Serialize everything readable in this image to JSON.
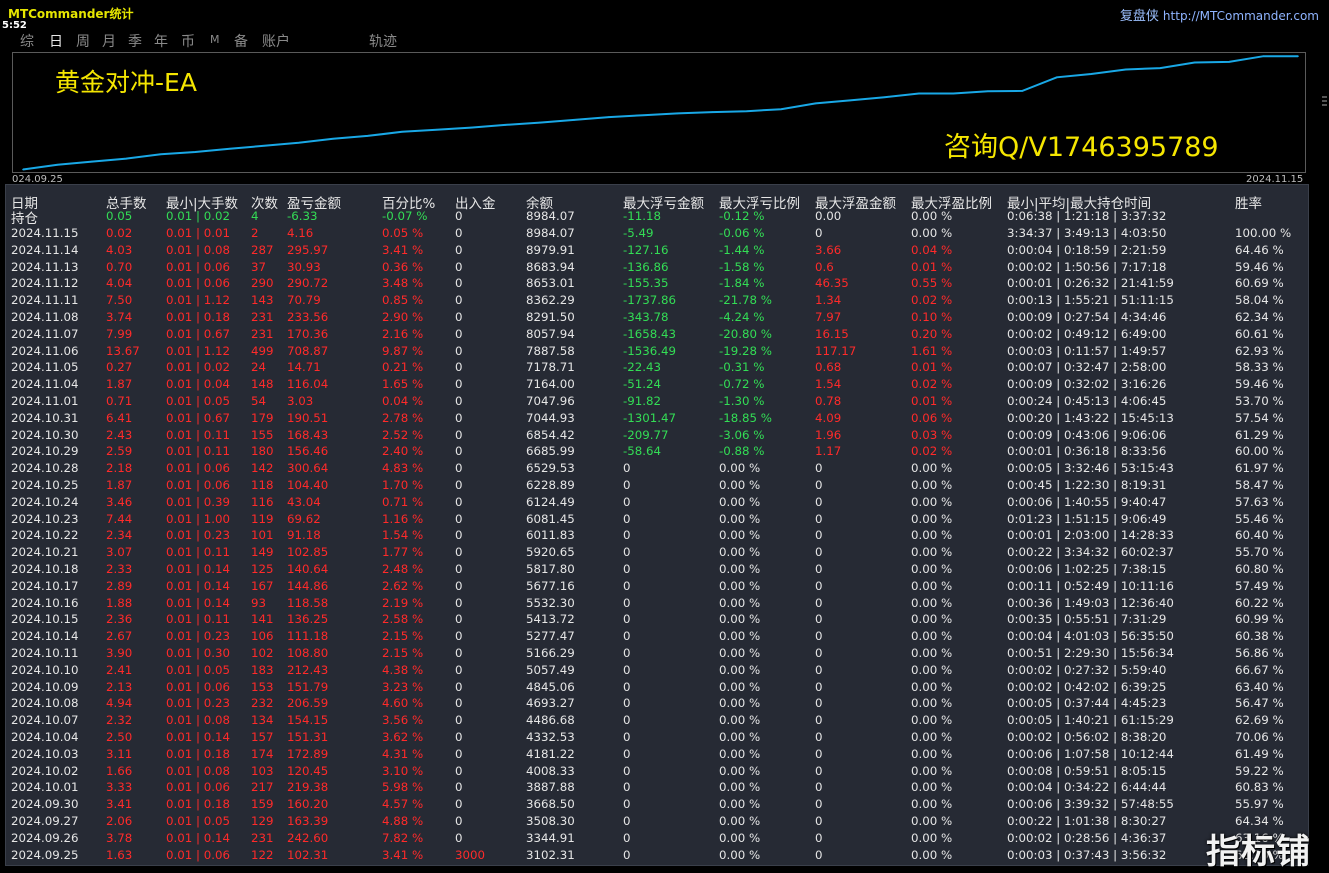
{
  "app": {
    "title": "MTCommander统计",
    "clock": "5:52",
    "brand_cn": "复盘侠",
    "brand_url": "http://MTCommander.com"
  },
  "tabs": [
    {
      "label": "综",
      "active": false
    },
    {
      "label": "日",
      "active": true
    },
    {
      "label": "周",
      "active": false
    },
    {
      "label": "月",
      "active": false
    },
    {
      "label": "季",
      "active": false
    },
    {
      "label": "年",
      "active": false
    },
    {
      "label": "币",
      "active": false
    },
    {
      "label": "M",
      "active": false
    },
    {
      "label": "备",
      "active": false
    },
    {
      "label": "账户",
      "active": false
    },
    {
      "label": "轨迹",
      "active": false
    }
  ],
  "chart": {
    "name": "黄金对冲-EA",
    "contact": "咨询Q/V1746395789",
    "date_start": "024.09.25",
    "date_end": "2024.11.15",
    "line_color": "#19a8e6"
  },
  "chart_data": {
    "type": "line",
    "series": [
      {
        "x": [
          "2024.09.25",
          "2024.09.26",
          "2024.09.27",
          "2024.09.30",
          "2024.10.01",
          "2024.10.02",
          "2024.10.03",
          "2024.10.04",
          "2024.10.07",
          "2024.10.08",
          "2024.10.09",
          "2024.10.10",
          "2024.10.11",
          "2024.10.14",
          "2024.10.15",
          "2024.10.16",
          "2024.10.17",
          "2024.10.18",
          "2024.10.21",
          "2024.10.22",
          "2024.10.23",
          "2024.10.24",
          "2024.10.25",
          "2024.10.28",
          "2024.10.29",
          "2024.10.30",
          "2024.10.31",
          "2024.11.01",
          "2024.11.04",
          "2024.11.05",
          "2024.11.06",
          "2024.11.07",
          "2024.11.08",
          "2024.11.11",
          "2024.11.12",
          "2024.11.13",
          "2024.11.14",
          "2024.11.15"
        ],
        "values": [
          3102.31,
          3344.91,
          3508.3,
          3668.5,
          3887.88,
          4008.33,
          4181.22,
          4332.53,
          4486.68,
          4693.27,
          4845.06,
          5057.49,
          5166.29,
          5277.47,
          5413.72,
          5532.3,
          5677.16,
          5817.8,
          5920.65,
          6011.83,
          6081.45,
          6124.49,
          6228.89,
          6529.53,
          6685.99,
          6854.42,
          7044.93,
          7047.96,
          7164.0,
          7178.71,
          7887.58,
          8057.94,
          8291.5,
          8362.29,
          8653.01,
          8683.94,
          8979.91,
          8984.07
        ]
      }
    ]
  },
  "table": {
    "headers": [
      "日期",
      "总手数",
      "最小|大手数",
      "次数",
      "盈亏金额",
      "百分比%",
      "出入金",
      "余额",
      "最大浮亏金额",
      "最大浮亏比例",
      "最大浮盈金额",
      "最大浮盈比例",
      "最小|平均|最大持仓时间",
      "胜率"
    ],
    "summary": [
      "持仓",
      "0.05",
      "0.01 | 0.02",
      "4",
      "-6.33",
      "-0.07 %",
      "0",
      "8984.07",
      "-11.18",
      "-0.12 %",
      "0.00",
      "0.00 %",
      "0:06:38 | 1:21:18 | 3:37:32",
      ""
    ],
    "rows": [
      [
        "2024.11.15",
        "0.02",
        "0.01 | 0.01",
        "2",
        "4.16",
        "0.05 %",
        "0",
        "8984.07",
        "-5.49",
        "-0.06 %",
        "0",
        "0.00 %",
        "3:34:37 | 3:49:13 | 4:03:50",
        "100.00 %"
      ],
      [
        "2024.11.14",
        "4.03",
        "0.01 | 0.08",
        "287",
        "295.97",
        "3.41 %",
        "0",
        "8979.91",
        "-127.16",
        "-1.44 %",
        "3.66",
        "0.04 %",
        "0:00:04 | 0:18:59 | 2:21:59",
        "64.46 %"
      ],
      [
        "2024.11.13",
        "0.70",
        "0.01 | 0.06",
        "37",
        "30.93",
        "0.36 %",
        "0",
        "8683.94",
        "-136.86",
        "-1.58 %",
        "0.6",
        "0.01 %",
        "0:00:02 | 1:50:56 | 7:17:18",
        "59.46 %"
      ],
      [
        "2024.11.12",
        "4.04",
        "0.01 | 0.06",
        "290",
        "290.72",
        "3.48 %",
        "0",
        "8653.01",
        "-155.35",
        "-1.84 %",
        "46.35",
        "0.55 %",
        "0:00:01 | 0:26:32 | 21:41:59",
        "60.69 %"
      ],
      [
        "2024.11.11",
        "7.50",
        "0.01 | 1.12",
        "143",
        "70.79",
        "0.85 %",
        "0",
        "8362.29",
        "-1737.86",
        "-21.78 %",
        "1.34",
        "0.02 %",
        "0:00:13 | 1:55:21 | 51:11:15",
        "58.04 %"
      ],
      [
        "2024.11.08",
        "3.74",
        "0.01 | 0.18",
        "231",
        "233.56",
        "2.90 %",
        "0",
        "8291.50",
        "-343.78",
        "-4.24 %",
        "7.97",
        "0.10 %",
        "0:00:09 | 0:27:54 | 4:34:46",
        "62.34 %"
      ],
      [
        "2024.11.07",
        "7.99",
        "0.01 | 0.67",
        "231",
        "170.36",
        "2.16 %",
        "0",
        "8057.94",
        "-1658.43",
        "-20.80 %",
        "16.15",
        "0.20 %",
        "0:00:02 | 0:49:12 | 6:49:00",
        "60.61 %"
      ],
      [
        "2024.11.06",
        "13.67",
        "0.01 | 1.12",
        "499",
        "708.87",
        "9.87 %",
        "0",
        "7887.58",
        "-1536.49",
        "-19.28 %",
        "117.17",
        "1.61 %",
        "0:00:03 | 0:11:57 | 1:49:57",
        "62.93 %"
      ],
      [
        "2024.11.05",
        "0.27",
        "0.01 | 0.02",
        "24",
        "14.71",
        "0.21 %",
        "0",
        "7178.71",
        "-22.43",
        "-0.31 %",
        "0.68",
        "0.01 %",
        "0:00:07 | 0:32:47 | 2:58:00",
        "58.33 %"
      ],
      [
        "2024.11.04",
        "1.87",
        "0.01 | 0.04",
        "148",
        "116.04",
        "1.65 %",
        "0",
        "7164.00",
        "-51.24",
        "-0.72 %",
        "1.54",
        "0.02 %",
        "0:00:09 | 0:32:02 | 3:16:26",
        "59.46 %"
      ],
      [
        "2024.11.01",
        "0.71",
        "0.01 | 0.05",
        "54",
        "3.03",
        "0.04 %",
        "0",
        "7047.96",
        "-91.82",
        "-1.30 %",
        "0.78",
        "0.01 %",
        "0:00:24 | 0:45:13 | 4:06:45",
        "53.70 %"
      ],
      [
        "2024.10.31",
        "6.41",
        "0.01 | 0.67",
        "179",
        "190.51",
        "2.78 %",
        "0",
        "7044.93",
        "-1301.47",
        "-18.85 %",
        "4.09",
        "0.06 %",
        "0:00:20 | 1:43:22 | 15:45:13",
        "57.54 %"
      ],
      [
        "2024.10.30",
        "2.43",
        "0.01 | 0.11",
        "155",
        "168.43",
        "2.52 %",
        "0",
        "6854.42",
        "-209.77",
        "-3.06 %",
        "1.96",
        "0.03 %",
        "0:00:09 | 0:43:06 | 9:06:06",
        "61.29 %"
      ],
      [
        "2024.10.29",
        "2.59",
        "0.01 | 0.11",
        "180",
        "156.46",
        "2.40 %",
        "0",
        "6685.99",
        "-58.64",
        "-0.88 %",
        "1.17",
        "0.02 %",
        "0:00:01 | 0:36:18 | 8:33:56",
        "60.00 %"
      ],
      [
        "2024.10.28",
        "2.18",
        "0.01 | 0.06",
        "142",
        "300.64",
        "4.83 %",
        "0",
        "6529.53",
        "0",
        "0.00 %",
        "0",
        "0.00 %",
        "0:00:05 | 3:32:46 | 53:15:43",
        "61.97 %"
      ],
      [
        "2024.10.25",
        "1.87",
        "0.01 | 0.06",
        "118",
        "104.40",
        "1.70 %",
        "0",
        "6228.89",
        "0",
        "0.00 %",
        "0",
        "0.00 %",
        "0:00:45 | 1:22:30 | 8:19:31",
        "58.47 %"
      ],
      [
        "2024.10.24",
        "3.46",
        "0.01 | 0.39",
        "116",
        "43.04",
        "0.71 %",
        "0",
        "6124.49",
        "0",
        "0.00 %",
        "0",
        "0.00 %",
        "0:00:06 | 1:40:55 | 9:40:47",
        "57.63 %"
      ],
      [
        "2024.10.23",
        "7.44",
        "0.01 | 1.00",
        "119",
        "69.62",
        "1.16 %",
        "0",
        "6081.45",
        "0",
        "0.00 %",
        "0",
        "0.00 %",
        "0:01:23 | 1:51:15 | 9:06:49",
        "55.46 %"
      ],
      [
        "2024.10.22",
        "2.34",
        "0.01 | 0.23",
        "101",
        "91.18",
        "1.54 %",
        "0",
        "6011.83",
        "0",
        "0.00 %",
        "0",
        "0.00 %",
        "0:00:01 | 2:03:00 | 14:28:33",
        "60.40 %"
      ],
      [
        "2024.10.21",
        "3.07",
        "0.01 | 0.11",
        "149",
        "102.85",
        "1.77 %",
        "0",
        "5920.65",
        "0",
        "0.00 %",
        "0",
        "0.00 %",
        "0:00:22 | 3:34:32 | 60:02:37",
        "55.70 %"
      ],
      [
        "2024.10.18",
        "2.33",
        "0.01 | 0.14",
        "125",
        "140.64",
        "2.48 %",
        "0",
        "5817.80",
        "0",
        "0.00 %",
        "0",
        "0.00 %",
        "0:00:06 | 1:02:25 | 7:38:15",
        "60.80 %"
      ],
      [
        "2024.10.17",
        "2.89",
        "0.01 | 0.14",
        "167",
        "144.86",
        "2.62 %",
        "0",
        "5677.16",
        "0",
        "0.00 %",
        "0",
        "0.00 %",
        "0:00:11 | 0:52:49 | 10:11:16",
        "57.49 %"
      ],
      [
        "2024.10.16",
        "1.88",
        "0.01 | 0.14",
        "93",
        "118.58",
        "2.19 %",
        "0",
        "5532.30",
        "0",
        "0.00 %",
        "0",
        "0.00 %",
        "0:00:36 | 1:49:03 | 12:36:40",
        "60.22 %"
      ],
      [
        "2024.10.15",
        "2.36",
        "0.01 | 0.11",
        "141",
        "136.25",
        "2.58 %",
        "0",
        "5413.72",
        "0",
        "0.00 %",
        "0",
        "0.00 %",
        "0:00:35 | 0:55:51 | 7:31:29",
        "60.99 %"
      ],
      [
        "2024.10.14",
        "2.67",
        "0.01 | 0.23",
        "106",
        "111.18",
        "2.15 %",
        "0",
        "5277.47",
        "0",
        "0.00 %",
        "0",
        "0.00 %",
        "0:00:04 | 4:01:03 | 56:35:50",
        "60.38 %"
      ],
      [
        "2024.10.11",
        "3.90",
        "0.01 | 0.30",
        "102",
        "108.80",
        "2.15 %",
        "0",
        "5166.29",
        "0",
        "0.00 %",
        "0",
        "0.00 %",
        "0:00:51 | 2:29:30 | 15:56:34",
        "56.86 %"
      ],
      [
        "2024.10.10",
        "2.41",
        "0.01 | 0.05",
        "183",
        "212.43",
        "4.38 %",
        "0",
        "5057.49",
        "0",
        "0.00 %",
        "0",
        "0.00 %",
        "0:00:02 | 0:27:32 | 5:59:40",
        "66.67 %"
      ],
      [
        "2024.10.09",
        "2.13",
        "0.01 | 0.06",
        "153",
        "151.79",
        "3.23 %",
        "0",
        "4845.06",
        "0",
        "0.00 %",
        "0",
        "0.00 %",
        "0:00:02 | 0:42:02 | 6:39:25",
        "63.40 %"
      ],
      [
        "2024.10.08",
        "4.94",
        "0.01 | 0.23",
        "232",
        "206.59",
        "4.60 %",
        "0",
        "4693.27",
        "0",
        "0.00 %",
        "0",
        "0.00 %",
        "0:00:05 | 0:37:44 | 4:45:23",
        "56.47 %"
      ],
      [
        "2024.10.07",
        "2.32",
        "0.01 | 0.08",
        "134",
        "154.15",
        "3.56 %",
        "0",
        "4486.68",
        "0",
        "0.00 %",
        "0",
        "0.00 %",
        "0:00:05 | 1:40:21 | 61:15:29",
        "62.69 %"
      ],
      [
        "2024.10.04",
        "2.50",
        "0.01 | 0.14",
        "157",
        "151.31",
        "3.62 %",
        "0",
        "4332.53",
        "0",
        "0.00 %",
        "0",
        "0.00 %",
        "0:00:02 | 0:56:02 | 8:38:20",
        "70.06 %"
      ],
      [
        "2024.10.03",
        "3.11",
        "0.01 | 0.18",
        "174",
        "172.89",
        "4.31 %",
        "0",
        "4181.22",
        "0",
        "0.00 %",
        "0",
        "0.00 %",
        "0:00:06 | 1:07:58 | 10:12:44",
        "61.49 %"
      ],
      [
        "2024.10.02",
        "1.66",
        "0.01 | 0.08",
        "103",
        "120.45",
        "3.10 %",
        "0",
        "4008.33",
        "0",
        "0.00 %",
        "0",
        "0.00 %",
        "0:00:08 | 0:59:51 | 8:05:15",
        "59.22 %"
      ],
      [
        "2024.10.01",
        "3.33",
        "0.01 | 0.06",
        "217",
        "219.38",
        "5.98 %",
        "0",
        "3887.88",
        "0",
        "0.00 %",
        "0",
        "0.00 %",
        "0:00:04 | 0:34:22 | 6:44:44",
        "60.83 %"
      ],
      [
        "2024.09.30",
        "3.41",
        "0.01 | 0.18",
        "159",
        "160.20",
        "4.57 %",
        "0",
        "3668.50",
        "0",
        "0.00 %",
        "0",
        "0.00 %",
        "0:00:06 | 3:39:32 | 57:48:55",
        "55.97 %"
      ],
      [
        "2024.09.27",
        "2.06",
        "0.01 | 0.05",
        "129",
        "163.39",
        "4.88 %",
        "0",
        "3508.30",
        "0",
        "0.00 %",
        "0",
        "0.00 %",
        "0:00:22 | 1:01:38 | 8:30:27",
        "64.34 %"
      ],
      [
        "2024.09.26",
        "3.78",
        "0.01 | 0.14",
        "231",
        "242.60",
        "7.82 %",
        "0",
        "3344.91",
        "0",
        "0.00 %",
        "0",
        "0.00 %",
        "0:00:02 | 0:28:56 | 4:36:37",
        "63.16 %"
      ],
      [
        "2024.09.25",
        "1.63",
        "0.01 | 0.06",
        "122",
        "102.31",
        "3.41 %",
        "3000",
        "3102.31",
        "0",
        "0.00 %",
        "0",
        "0.00 %",
        "0:00:03 | 0:37:43 | 3:56:32",
        "62.30 %"
      ]
    ]
  },
  "watermark": "指标铺",
  "colors": {
    "positive": "#ff2a2a",
    "negative": "#33dd55",
    "neutral": "#e6e6e6",
    "title": "#e6e600",
    "chart_text": "#f5e600"
  }
}
